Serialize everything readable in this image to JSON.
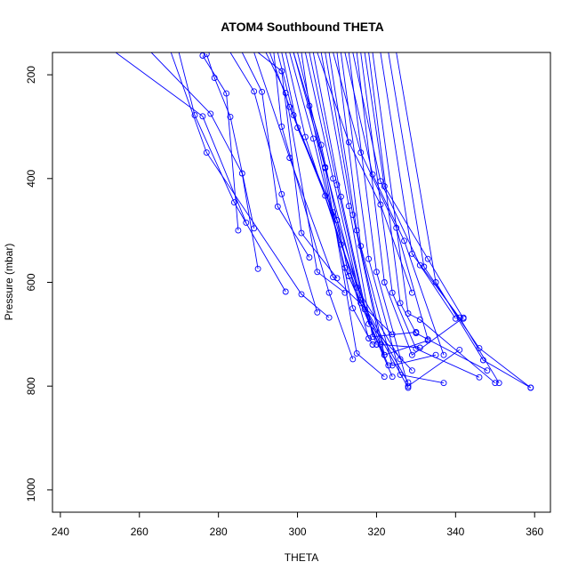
{
  "chart_data": {
    "type": "line",
    "title": "ATOM4 Southbound THETA",
    "xlabel": "THETA",
    "ylabel": "Pressure (mbar)",
    "xlim": [
      238,
      364
    ],
    "ylim": [
      1043,
      157
    ],
    "y_reversed": true,
    "x_ticks": [
      240,
      260,
      280,
      300,
      320,
      340,
      360
    ],
    "y_ticks": [
      200,
      400,
      600,
      800,
      1000
    ],
    "grid": false,
    "legend": "none",
    "series_color": "#0000ff",
    "marker": "open-circle",
    "series": [
      {
        "points": [
          [
            254,
            157
          ],
          [
            276,
            280
          ],
          [
            287,
            485
          ]
        ]
      },
      {
        "points": [
          [
            263,
            157
          ],
          [
            278,
            275
          ],
          [
            286,
            390
          ],
          [
            290,
            574
          ]
        ]
      },
      {
        "points": [
          [
            270,
            157
          ],
          [
            274,
            278
          ],
          [
            284,
            446
          ],
          [
            297,
            618
          ]
        ]
      },
      {
        "points": [
          [
            277,
            160
          ],
          [
            279,
            206
          ],
          [
            283,
            281
          ],
          [
            289,
            496
          ]
        ]
      },
      {
        "points": [
          [
            276,
            163
          ],
          [
            282,
            236
          ],
          [
            285,
            500
          ]
        ]
      },
      {
        "points": [
          [
            268,
            157
          ],
          [
            277,
            350
          ],
          [
            301,
            623
          ],
          [
            308,
            668
          ]
        ]
      },
      {
        "points": [
          [
            283,
            157
          ],
          [
            289,
            232
          ],
          [
            296,
            430
          ],
          [
            305,
            658
          ]
        ]
      },
      {
        "points": [
          [
            286,
            157
          ],
          [
            291,
            233
          ],
          [
            295,
            454
          ],
          [
            303,
            552
          ]
        ]
      },
      {
        "points": [
          [
            290,
            157
          ],
          [
            296,
            193
          ],
          [
            301,
            505
          ],
          [
            310,
            592
          ]
        ]
      },
      {
        "points": [
          [
            292,
            157
          ],
          [
            297,
            235
          ],
          [
            305,
            580
          ],
          [
            312,
            620
          ]
        ]
      },
      {
        "points": [
          [
            293,
            157
          ],
          [
            298,
            262
          ],
          [
            307,
            433
          ],
          [
            316,
            640
          ]
        ]
      },
      {
        "points": [
          [
            295,
            157
          ],
          [
            299,
            278
          ],
          [
            309,
            465
          ],
          [
            318,
            708
          ]
        ]
      },
      {
        "points": [
          [
            296,
            157
          ],
          [
            300,
            302
          ],
          [
            310,
            480
          ],
          [
            320,
            720
          ]
        ]
      },
      {
        "points": [
          [
            297,
            157
          ],
          [
            302,
            320
          ],
          [
            311,
            527
          ],
          [
            322,
            740
          ]
        ]
      },
      {
        "points": [
          [
            298,
            157
          ],
          [
            304,
            323
          ],
          [
            312,
            572
          ],
          [
            323,
            760
          ]
        ]
      },
      {
        "points": [
          [
            299,
            157
          ],
          [
            306,
            335
          ],
          [
            313,
            588
          ],
          [
            324,
            782
          ]
        ]
      },
      {
        "points": [
          [
            300,
            157
          ],
          [
            307,
            378
          ],
          [
            315,
            610
          ],
          [
            326,
            748
          ]
        ]
      },
      {
        "points": [
          [
            302,
            157
          ],
          [
            309,
            400
          ],
          [
            316,
            634
          ],
          [
            328,
            793
          ]
        ]
      },
      {
        "points": [
          [
            303,
            157
          ],
          [
            310,
            412
          ],
          [
            317,
            652
          ],
          [
            328,
            803
          ]
        ]
      },
      {
        "points": [
          [
            304,
            157
          ],
          [
            311,
            435
          ],
          [
            318,
            680
          ],
          [
            329,
            770
          ]
        ]
      },
      {
        "points": [
          [
            306,
            157
          ],
          [
            313,
            453
          ],
          [
            319,
            705
          ],
          [
            330,
            696
          ]
        ]
      },
      {
        "points": [
          [
            307,
            157
          ],
          [
            314,
            470
          ],
          [
            321,
            720
          ],
          [
            331,
            726
          ]
        ]
      },
      {
        "points": [
          [
            308,
            157
          ],
          [
            315,
            500
          ],
          [
            322,
            740
          ],
          [
            333,
            712
          ]
        ]
      },
      {
        "points": [
          [
            310,
            157
          ],
          [
            316,
            530
          ],
          [
            324,
            760
          ],
          [
            335,
            740
          ]
        ]
      },
      {
        "points": [
          [
            311,
            157
          ],
          [
            318,
            555
          ],
          [
            326,
            778
          ],
          [
            337,
            794
          ]
        ]
      },
      {
        "points": [
          [
            313,
            157
          ],
          [
            320,
            580
          ],
          [
            328,
            800
          ],
          [
            341,
            730
          ]
        ]
      },
      {
        "points": [
          [
            315,
            157
          ],
          [
            322,
            600
          ],
          [
            329,
            740
          ],
          [
            342,
            668
          ]
        ]
      },
      {
        "points": [
          [
            316,
            157
          ],
          [
            324,
            620
          ],
          [
            330,
            728
          ],
          [
            346,
            783
          ]
        ]
      },
      {
        "points": [
          [
            318,
            157
          ],
          [
            326,
            640
          ],
          [
            330,
            698
          ],
          [
            348,
            770
          ]
        ]
      },
      {
        "points": [
          [
            319,
            157
          ],
          [
            328,
            660
          ],
          [
            331,
            672
          ],
          [
            350,
            794
          ]
        ]
      },
      {
        "points": [
          [
            321,
            157
          ],
          [
            329,
            545
          ],
          [
            341,
            668
          ],
          [
            351,
            794
          ]
        ]
      },
      {
        "points": [
          [
            323,
            157
          ],
          [
            332,
            570
          ],
          [
            346,
            727
          ],
          [
            359,
            803
          ]
        ]
      },
      {
        "points": [
          [
            325,
            157
          ],
          [
            335,
            600
          ],
          [
            347,
            750
          ],
          [
            359,
            803
          ]
        ]
      },
      {
        "points": [
          [
            305,
            157
          ],
          [
            313,
            330
          ],
          [
            321,
            450
          ],
          [
            329,
            620
          ]
        ]
      },
      {
        "points": [
          [
            309,
            157
          ],
          [
            316,
            350
          ],
          [
            325,
            495
          ],
          [
            333,
            710
          ]
        ]
      },
      {
        "points": [
          [
            312,
            157
          ],
          [
            319,
            392
          ],
          [
            327,
            520
          ],
          [
            337,
            740
          ]
        ]
      },
      {
        "points": [
          [
            314,
            157
          ],
          [
            321,
            405
          ],
          [
            331,
            567
          ],
          [
            340,
            670
          ]
        ]
      },
      {
        "points": [
          [
            317,
            157
          ],
          [
            322,
            415
          ],
          [
            333,
            555
          ],
          [
            342,
            670
          ]
        ]
      },
      {
        "points": [
          [
            301,
            157
          ],
          [
            303,
            260
          ],
          [
            314,
            650
          ],
          [
            319,
            720
          ]
        ]
      },
      {
        "points": [
          [
            294,
            157
          ],
          [
            296,
            300
          ],
          [
            308,
            620
          ],
          [
            314,
            748
          ]
        ]
      },
      {
        "points": [
          [
            299,
            157
          ],
          [
            307,
            380
          ],
          [
            315,
            737
          ],
          [
            322,
            782
          ]
        ]
      },
      {
        "points": [
          [
            289,
            157
          ],
          [
            298,
            360
          ],
          [
            309,
            590
          ],
          [
            324,
            700
          ]
        ]
      }
    ]
  }
}
